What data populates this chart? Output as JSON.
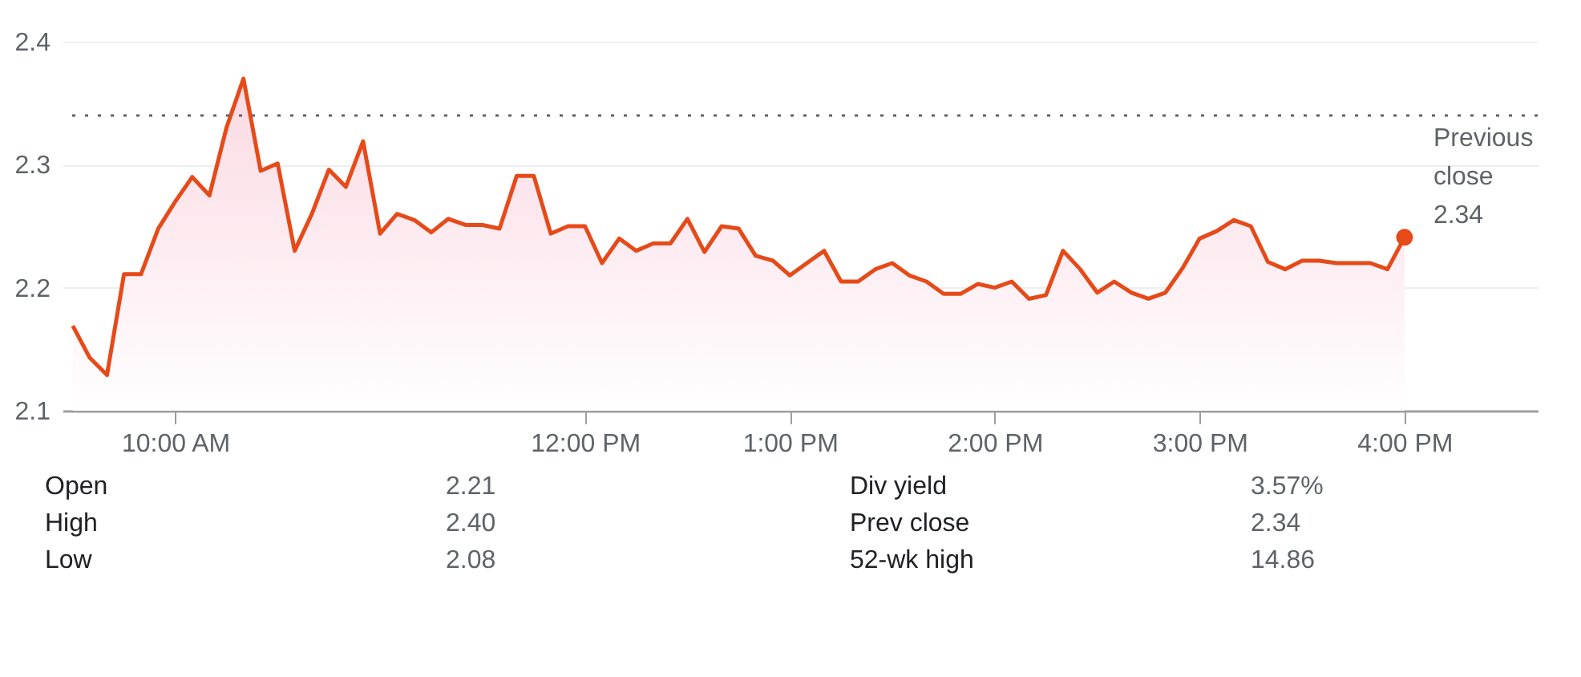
{
  "chart_data": {
    "type": "area",
    "x": [
      9.5,
      9.583,
      9.667,
      9.75,
      9.833,
      9.917,
      10,
      10.083,
      10.167,
      10.25,
      10.333,
      10.417,
      10.5,
      10.583,
      10.667,
      10.75,
      10.833,
      10.917,
      11,
      11.083,
      11.167,
      11.25,
      11.333,
      11.417,
      11.5,
      11.583,
      11.667,
      11.75,
      11.833,
      11.917,
      12,
      12.083,
      12.167,
      12.25,
      12.333,
      12.417,
      12.5,
      12.583,
      12.667,
      12.75,
      12.833,
      12.917,
      13,
      13.083,
      13.167,
      13.25,
      13.333,
      13.417,
      13.5,
      13.583,
      13.667,
      13.75,
      13.833,
      13.917,
      14,
      14.083,
      14.167,
      14.25,
      14.333,
      14.417,
      14.5,
      14.583,
      14.667,
      14.75,
      14.833,
      14.917,
      15,
      15.083,
      15.167,
      15.25,
      15.333,
      15.417,
      15.5,
      15.583,
      15.667,
      15.75,
      15.833,
      15.917,
      16
    ],
    "series": [
      {
        "color": "#e64a19",
        "values": [
          2.169,
          2.143,
          2.129,
          2.211,
          2.211,
          2.248,
          2.27,
          2.29,
          2.275,
          2.33,
          2.37,
          2.295,
          2.301,
          2.23,
          2.26,
          2.296,
          2.282,
          2.319,
          2.244,
          2.26,
          2.255,
          2.245,
          2.256,
          2.251,
          2.251,
          2.248,
          2.291,
          2.291,
          2.244,
          2.25,
          2.25,
          2.22,
          2.24,
          2.23,
          2.236,
          2.236,
          2.256,
          2.229,
          2.25,
          2.248,
          2.226,
          2.222,
          2.21,
          2.22,
          2.23,
          2.205,
          2.205,
          2.215,
          2.22,
          2.21,
          2.205,
          2.195,
          2.195,
          2.203,
          2.2,
          2.205,
          2.191,
          2.194,
          2.23,
          2.215,
          2.196,
          2.205,
          2.196,
          2.191,
          2.196,
          2.216,
          2.24,
          2.246,
          2.255,
          2.25,
          2.221,
          2.215,
          2.222,
          2.222,
          2.22,
          2.22,
          2.22,
          2.215,
          2.241
        ]
      }
    ],
    "xlim": [
      9.45,
      16.65
    ],
    "xticks": [
      {
        "value": 10,
        "label": "10:00 AM"
      },
      {
        "value": 12,
        "label": "12:00 PM"
      },
      {
        "value": 13,
        "label": "1:00 PM"
      },
      {
        "value": 14,
        "label": "2:00 PM"
      },
      {
        "value": 15,
        "label": "3:00 PM"
      },
      {
        "value": 16,
        "label": "4:00 PM"
      }
    ],
    "ylim": [
      2.1,
      2.4
    ],
    "yticks": [
      2.1,
      2.2,
      2.3,
      2.4
    ],
    "grid": "y",
    "ref_lines": [
      {
        "axis": "y",
        "value": 2.34,
        "label": "Previous close 2.34",
        "color": "#5f6368",
        "line_style": "dotted"
      }
    ],
    "annotations": [
      "Open",
      "2.21",
      "Div yield",
      "3.57%",
      "High",
      "2.40",
      "Prev close",
      "2.34",
      "Low",
      "2.08",
      "52-wk high",
      "14.86"
    ]
  }
}
